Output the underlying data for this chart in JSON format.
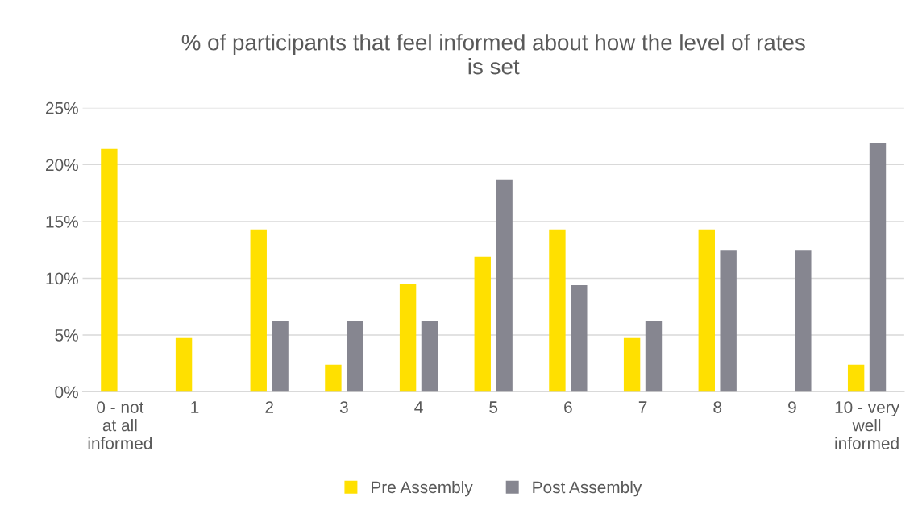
{
  "chart_data": {
    "type": "bar",
    "title": "% of participants that feel informed about how the level of rates\nis set",
    "categories": [
      "0 - not\nat all\ninformed",
      "1",
      "2",
      "3",
      "4",
      "5",
      "6",
      "7",
      "8",
      "9",
      "10 - very\nwell\ninformed"
    ],
    "series": [
      {
        "name": "Pre Assembly",
        "color": "#ffe000",
        "values": [
          21.4,
          4.8,
          14.3,
          2.4,
          9.5,
          11.9,
          14.3,
          4.8,
          14.3,
          0,
          2.4
        ]
      },
      {
        "name": "Post Assembly",
        "color": "#868690",
        "values": [
          0,
          0,
          6.2,
          6.2,
          6.2,
          18.7,
          9.4,
          6.2,
          12.5,
          12.5,
          21.9
        ]
      }
    ],
    "ylim": [
      0,
      25
    ],
    "yticks": [
      {
        "value": 0,
        "label": "0%"
      },
      {
        "value": 5,
        "label": "5%"
      },
      {
        "value": 10,
        "label": "10%"
      },
      {
        "value": 15,
        "label": "15%"
      },
      {
        "value": 20,
        "label": "20%"
      },
      {
        "value": 25,
        "label": "25%"
      }
    ],
    "grid": "y",
    "legend": "bottom"
  }
}
